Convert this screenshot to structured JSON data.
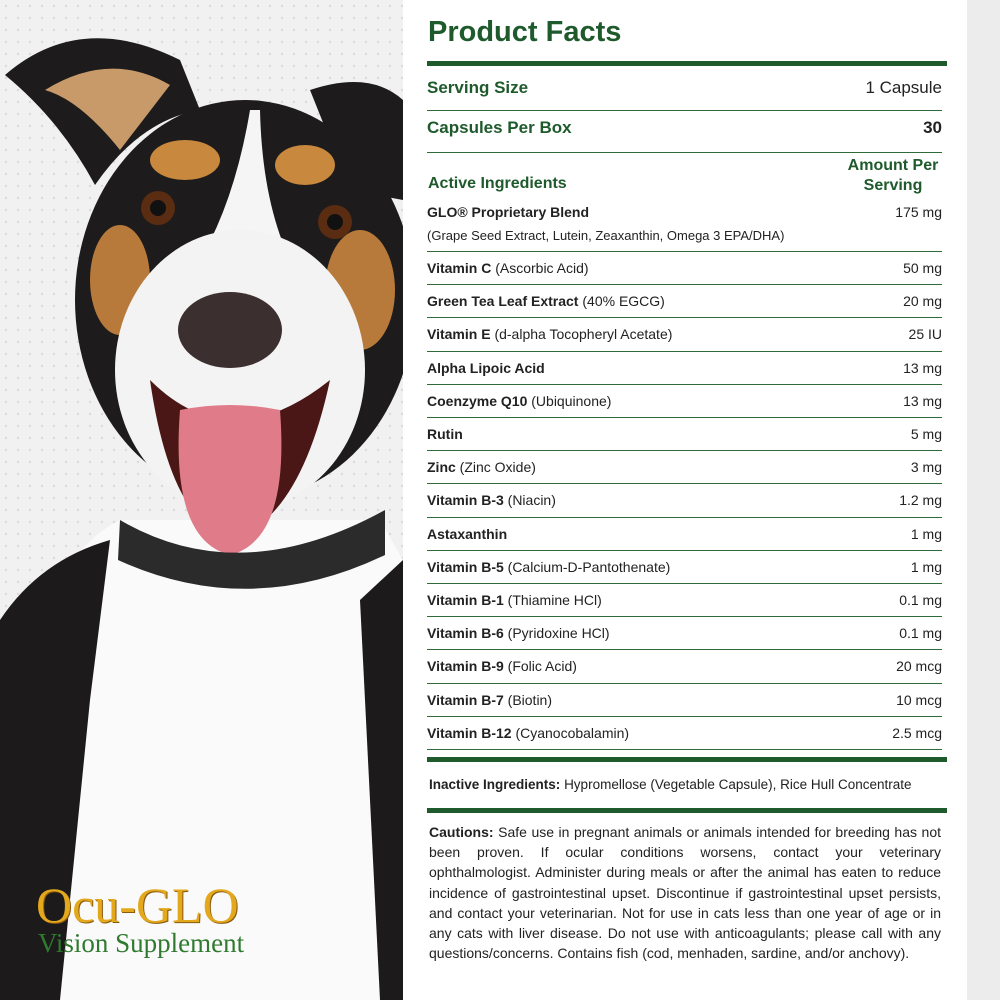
{
  "title": "Product Facts",
  "serving": {
    "label": "Serving Size",
    "value": "1 Capsule"
  },
  "capsules": {
    "label": "Capsules Per Box",
    "value": "30"
  },
  "header": {
    "ingredients": "Active Ingredients",
    "amount": "Amount Per Serving"
  },
  "ingredients": [
    {
      "name": "GLO® Proprietary Blend",
      "detail": "(Grape Seed Extract, Lutein, Zeaxanthin, Omega 3 EPA/DHA)",
      "amount": "175 mg"
    },
    {
      "name": "Vitamin C",
      "detail": "(Ascorbic Acid)",
      "amount": "50 mg"
    },
    {
      "name": "Green Tea Leaf Extract",
      "detail": "(40% EGCG)",
      "amount": "20 mg"
    },
    {
      "name": "Vitamin E",
      "detail": "(d-alpha Tocopheryl Acetate)",
      "amount": "25 IU"
    },
    {
      "name": "Alpha Lipoic Acid",
      "amount": "13 mg"
    },
    {
      "name": "Coenzyme Q10",
      "detail": "(Ubiquinone)",
      "amount": "13 mg"
    },
    {
      "name": "Rutin",
      "amount": "5 mg"
    },
    {
      "name": "Zinc",
      "detail": "(Zinc Oxide)",
      "amount": "3 mg"
    },
    {
      "name": "Vitamin B-3",
      "detail": "(Niacin)",
      "amount": "1.2 mg"
    },
    {
      "name": "Astaxanthin",
      "amount": "1 mg"
    },
    {
      "name": "Vitamin B-5",
      "detail": "(Calcium-D-Pantothenate)",
      "amount": "1 mg"
    },
    {
      "name": "Vitamin B-1",
      "detail": "(Thiamine HCl)",
      "amount": "0.1 mg"
    },
    {
      "name": "Vitamin B-6",
      "detail": "(Pyridoxine HCl)",
      "amount": "0.1 mg"
    },
    {
      "name": "Vitamin B-9",
      "detail": "(Folic Acid)",
      "amount": "20 mcg"
    },
    {
      "name": "Vitamin B-7",
      "detail": "(Biotin)",
      "amount": "10 mcg"
    },
    {
      "name": "Vitamin B-12",
      "detail": "(Cyanocobalamin)",
      "amount": "2.5 mcg"
    }
  ],
  "inactive": {
    "label": "Inactive Ingredients:",
    "text": "Hypromellose (Vegetable Capsule), Rice Hull Concentrate"
  },
  "cautions": {
    "label": "Cautions:",
    "text": "Safe use in pregnant animals or animals intended for breeding has not been proven. If ocular conditions worsens, contact your veterinary ophthalmologist. Administer during meals or after the animal has eaten to reduce incidence of gastrointestinal upset. Discontinue if gastrointestinal upset persists, and contact your veterinarian. Not for use in cats less than one year of age or in any cats with liver disease. Do not use with anticoagulants; please call with any questions/concerns. Contains fish (cod, menhaden, sardine, and/or anchovy)."
  },
  "brand": {
    "name": "Ocu-GLO",
    "tagline": "Vision Supplement"
  }
}
